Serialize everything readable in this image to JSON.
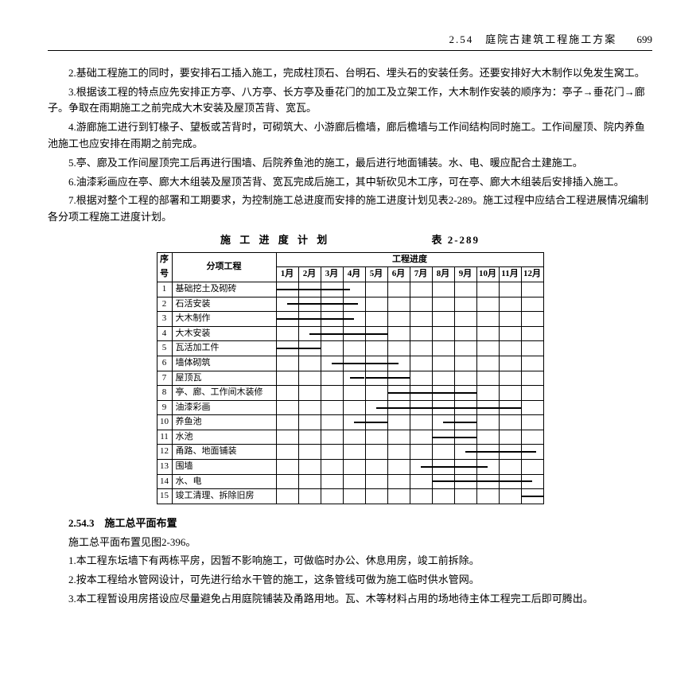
{
  "header": {
    "section": "2.54　庭院古建筑工程施工方案",
    "page": "699"
  },
  "paras": [
    "2.基础工程施工的同时，要安排石工插入施工，完成柱顶石、台明石、埋头石的安装任务。还要安排好大木制作以免发生窝工。",
    "3.根据该工程的特点应先安排正方亭、八方亭、长方亭及垂花门的加工及立架工作，大木制作安装的顺序为：亭子→垂花门→廊子。争取在雨期施工之前完成大木安装及屋顶苫背、宽瓦。",
    "4.游廊施工进行到钉椽子、望板或苫背时，可砌筑大、小游廊后檐墙，廊后檐墙与工作间结构同时施工。工作间屋顶、院内养鱼池施工也应安排在雨期之前完成。",
    "5.亭、廊及工作间屋顶完工后再进行围墙、后院养鱼池的施工，最后进行地面铺装。水、电、暖应配合土建施工。",
    "6.油漆彩画应在亭、廊大木组装及屋顶苫背、宽瓦完成后施工，其中斩砍见木工序，可在亭、廊大木组装后安排插入施工。",
    "7.根据对整个工程的部署和工期要求，为控制施工总进度而安排的施工进度计划见表2-289。施工过程中应结合工程进展情况编制各分项工程施工进度计划。"
  ],
  "table": {
    "title": "施 工 进 度 计 划",
    "label": "表 2-289",
    "head_seq": "序号",
    "head_name": "分项工程",
    "head_prog": "工程进度",
    "months": [
      "1月",
      "2月",
      "3月",
      "4月",
      "5月",
      "6月",
      "7月",
      "8月",
      "9月",
      "10月",
      "11月",
      "12月"
    ],
    "rows": [
      {
        "n": "1",
        "name": "基础挖土及砌砖",
        "bars": [
          {
            "s": 0,
            "e": 3.3
          }
        ]
      },
      {
        "n": "2",
        "name": "石活安装",
        "bars": [
          {
            "s": 0.5,
            "e": 3.7
          }
        ]
      },
      {
        "n": "3",
        "name": "大木制作",
        "bars": [
          {
            "s": 0,
            "e": 3.5
          }
        ]
      },
      {
        "n": "4",
        "name": "大木安装",
        "bars": [
          {
            "s": 1.5,
            "e": 5
          }
        ]
      },
      {
        "n": "5",
        "name": "瓦活加工件",
        "bars": [
          {
            "s": 0,
            "e": 2
          }
        ]
      },
      {
        "n": "6",
        "name": "墙体砌筑",
        "bars": [
          {
            "s": 2.5,
            "e": 5.5
          }
        ]
      },
      {
        "n": "7",
        "name": "屋顶瓦",
        "bars": [
          {
            "s": 3.3,
            "e": 6
          }
        ]
      },
      {
        "n": "8",
        "name": "亭、廊、工作间木装修",
        "bars": [
          {
            "s": 5,
            "e": 9
          }
        ]
      },
      {
        "n": "9",
        "name": "油漆彩画",
        "bars": [
          {
            "s": 4.5,
            "e": 11
          }
        ]
      },
      {
        "n": "10",
        "name": "养鱼池",
        "bars": [
          {
            "s": 3.5,
            "e": 5
          },
          {
            "s": 7.5,
            "e": 9
          }
        ]
      },
      {
        "n": "11",
        "name": "水池",
        "bars": [
          {
            "s": 7,
            "e": 9
          }
        ]
      },
      {
        "n": "12",
        "name": "甬路、地面铺装",
        "bars": [
          {
            "s": 8.5,
            "e": 11.7
          }
        ]
      },
      {
        "n": "13",
        "name": "围墙",
        "bars": [
          {
            "s": 6.5,
            "e": 9.5
          }
        ]
      },
      {
        "n": "14",
        "name": "水、电",
        "bars": [
          {
            "s": 7,
            "e": 11.5
          }
        ]
      },
      {
        "n": "15",
        "name": "竣工清理、拆除旧房",
        "bars": [
          {
            "s": 11,
            "e": 12
          }
        ]
      }
    ]
  },
  "sec_title": "2.54.3　施工总平面布置",
  "paras2": [
    "施工总平面布置见图2-396。",
    "1.本工程东坛墙下有两栋平房，因暂不影响施工，可做临时办公、休息用房，竣工前拆除。",
    "2.按本工程给水管网设计，可先进行给水干管的施工，这条管线可做为施工临时供水管网。",
    "3.本工程暂设用房搭设应尽量避免占用庭院铺装及甬路用地。瓦、木等材料占用的场地待主体工程完工后即可腾出。"
  ]
}
